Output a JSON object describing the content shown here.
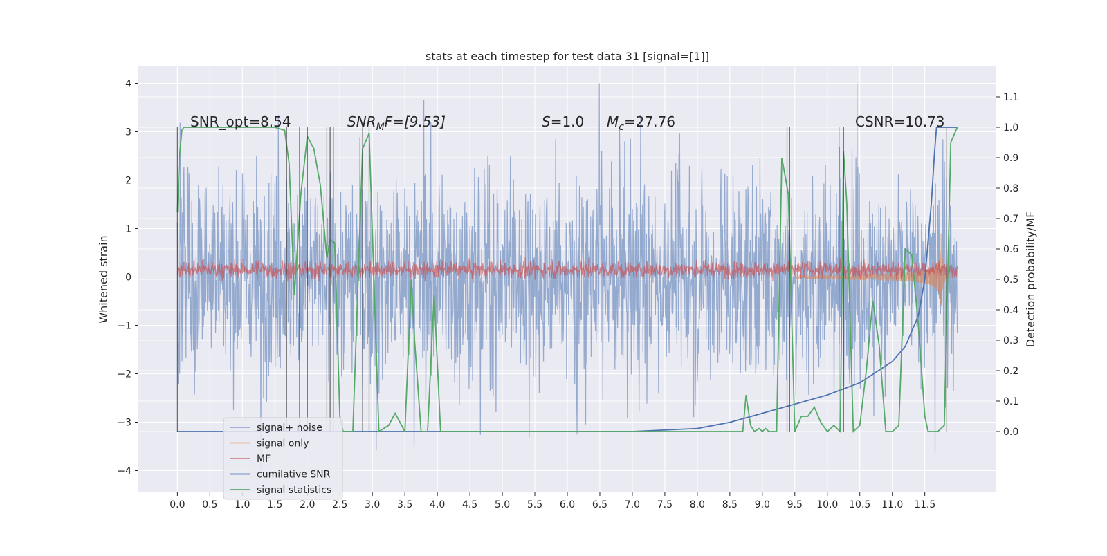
{
  "chart_data": {
    "type": "line",
    "title": "stats at each timestep for test data 31 [signal=[1]]",
    "xlabel": "",
    "ylabel": "Whitened strain",
    "y2label": "Detection probability/MF",
    "xlim": [
      -0.6,
      12.6
    ],
    "ylim": [
      -4.45,
      4.35
    ],
    "y2lim": [
      -0.2,
      1.2
    ],
    "xticks": [
      "0.0",
      "0.5",
      "1.0",
      "1.5",
      "2.0",
      "2.5",
      "3.0",
      "3.5",
      "4.0",
      "4.5",
      "5.0",
      "5.5",
      "6.0",
      "6.5",
      "7.0",
      "7.5",
      "8.0",
      "8.5",
      "9.0",
      "9.5",
      "10.0",
      "10.5",
      "11.0",
      "11.5"
    ],
    "yticks": [
      "4",
      "3",
      "2",
      "1",
      "0",
      "−1",
      "−2",
      "−3",
      "−4"
    ],
    "y2ticks": [
      "1.1",
      "1.0",
      "0.9",
      "0.8",
      "0.7",
      "0.6",
      "0.5",
      "0.4",
      "0.3",
      "0.2",
      "0.1",
      "0.0"
    ],
    "grid": true,
    "legend_position": "lower-left",
    "annotations": {
      "snr_opt": "SNR_opt=8.54",
      "snr_mf_base": "SNR",
      "snr_mf_sub": "M",
      "snr_mf_rest": "F=[9.53]",
      "s_italic": "S",
      "s_rest": "=1.0",
      "mc_base": "M",
      "mc_sub": "c",
      "mc_rest": "=27.76",
      "csnr": "CSNR=10.73"
    },
    "series": [
      {
        "name": "signal+ noise",
        "color": "#4c72b0",
        "kind": "noise",
        "amplitude_range": [
          -4.1,
          4.0
        ]
      },
      {
        "name": "signal only",
        "color": "#dd8452",
        "kind": "chirp",
        "merger_time": 11.75
      },
      {
        "name": "MF",
        "color": "#c44e52",
        "kind": "noise_band",
        "center": 0.15,
        "amplitude": 0.25
      },
      {
        "name": "cumilative SNR",
        "color": "#4c72b0",
        "x": [
          0.0,
          7.0,
          8.0,
          8.5,
          9.0,
          9.5,
          10.0,
          10.5,
          11.0,
          11.2,
          11.4,
          11.5,
          11.6,
          11.65,
          11.68,
          11.7,
          12.0
        ],
        "y": [
          0.0,
          0.0,
          0.01,
          0.03,
          0.06,
          0.09,
          0.12,
          0.16,
          0.23,
          0.28,
          0.38,
          0.5,
          0.75,
          0.92,
          1.0,
          1.0,
          1.0
        ]
      },
      {
        "name": "signal statistics",
        "color": "#55a868",
        "x": [
          0.0,
          0.03,
          0.07,
          0.1,
          0.2,
          1.5,
          1.65,
          1.72,
          1.8,
          1.9,
          2.0,
          2.1,
          2.2,
          2.3,
          2.35,
          2.42,
          2.5,
          2.55,
          2.7,
          2.85,
          2.95,
          3.1,
          3.25,
          3.35,
          3.5,
          3.6,
          3.65,
          3.75,
          3.85,
          3.95,
          4.05,
          8.7,
          8.75,
          8.82,
          8.88,
          8.95,
          9.0,
          9.05,
          9.1,
          9.15,
          9.22,
          9.3,
          9.4,
          9.5,
          9.6,
          9.7,
          9.8,
          9.9,
          10.0,
          10.1,
          10.2,
          10.25,
          10.3,
          10.4,
          10.5,
          10.6,
          10.7,
          10.8,
          10.9,
          11.0,
          11.1,
          11.2,
          11.3,
          11.4,
          11.5,
          11.55,
          11.6,
          11.7,
          11.8,
          11.9,
          12.0
        ],
        "y": [
          0.72,
          0.9,
          0.99,
          1.0,
          1.0,
          1.0,
          0.99,
          0.88,
          0.45,
          0.78,
          0.97,
          0.93,
          0.81,
          0.57,
          0.63,
          0.62,
          0.05,
          0.0,
          0.0,
          0.93,
          0.98,
          0.0,
          0.02,
          0.06,
          0.0,
          0.5,
          0.3,
          0.0,
          0.0,
          0.45,
          0.0,
          0.0,
          0.12,
          0.02,
          0.0,
          0.01,
          0.0,
          0.01,
          0.0,
          0.0,
          0.0,
          0.9,
          0.78,
          0.0,
          0.05,
          0.05,
          0.08,
          0.03,
          0.0,
          0.02,
          0.0,
          0.92,
          0.75,
          0.0,
          0.02,
          0.2,
          0.43,
          0.28,
          0.0,
          0.0,
          0.02,
          0.6,
          0.58,
          0.35,
          0.05,
          0.0,
          0.0,
          0.0,
          0.02,
          0.95,
          1.0
        ]
      }
    ],
    "vertical_lines_x": [
      0.0,
      1.68,
      1.88,
      2.0,
      2.3,
      2.35,
      2.4,
      2.85,
      2.95,
      9.38,
      9.42,
      10.18,
      10.25,
      11.83
    ]
  }
}
